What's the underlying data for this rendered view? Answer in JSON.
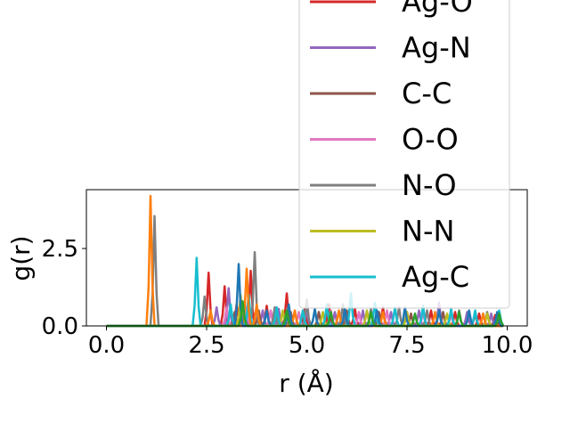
{
  "chart_data": {
    "type": "line",
    "xlabel": "r (Å)",
    "ylabel": "g(r)",
    "xlim": [
      -0.5,
      10.5
    ],
    "ylim": [
      0,
      4.4
    ],
    "xticks": [
      0.0,
      2.5,
      5.0,
      7.5,
      10.0
    ],
    "xtick_labels": [
      "0.0",
      "2.5",
      "5.0",
      "7.5",
      "10.0"
    ],
    "yticks": [
      0.0,
      2.5
    ],
    "ytick_labels": [
      "0.0",
      "2.5"
    ],
    "grid": false,
    "legend_position": "upper-right",
    "series": [
      {
        "name": "Ag-O",
        "color": "#d62728",
        "peaks": [
          [
            2.55,
            1.72
          ],
          [
            2.95,
            1.28
          ],
          [
            3.25,
            0.7
          ],
          [
            3.6,
            1.78
          ],
          [
            4.0,
            0.65
          ],
          [
            4.5,
            1.05
          ],
          [
            4.95,
            0.55
          ],
          [
            5.55,
            0.7
          ],
          [
            6.2,
            0.55
          ],
          [
            6.9,
            0.6
          ],
          [
            7.5,
            0.45
          ],
          [
            8.1,
            0.5
          ],
          [
            8.7,
            0.45
          ],
          [
            9.3,
            0.4
          ],
          [
            9.7,
            0.35
          ]
        ]
      },
      {
        "name": "Ag-N",
        "color": "#9467bd",
        "peaks": [
          [
            2.75,
            0.6
          ],
          [
            3.05,
            1.22
          ],
          [
            3.45,
            0.75
          ],
          [
            3.9,
            0.5
          ],
          [
            4.3,
            0.55
          ],
          [
            5.0,
            0.5
          ],
          [
            5.7,
            0.45
          ],
          [
            6.4,
            0.5
          ],
          [
            7.1,
            0.45
          ],
          [
            7.8,
            0.5
          ],
          [
            8.3,
            0.75
          ],
          [
            9.0,
            0.45
          ],
          [
            9.6,
            0.4
          ]
        ]
      },
      {
        "name": "C-C",
        "color": "#8c564b",
        "peaks": [
          [
            3.2,
            0.45
          ],
          [
            3.8,
            0.5
          ],
          [
            4.6,
            0.45
          ],
          [
            5.3,
            0.45
          ],
          [
            6.0,
            0.5
          ],
          [
            6.8,
            0.45
          ],
          [
            7.6,
            0.4
          ],
          [
            8.4,
            0.45
          ],
          [
            9.2,
            0.4
          ]
        ]
      },
      {
        "name": "O-O",
        "color": "#e377c2",
        "peaks": [
          [
            3.0,
            0.6
          ],
          [
            3.5,
            0.55
          ],
          [
            4.1,
            0.5
          ],
          [
            4.8,
            0.45
          ],
          [
            5.6,
            0.5
          ],
          [
            6.3,
            0.45
          ],
          [
            7.0,
            0.5
          ],
          [
            7.9,
            0.45
          ],
          [
            8.6,
            0.4
          ],
          [
            9.4,
            0.4
          ]
        ]
      },
      {
        "name": "N-O",
        "color": "#7f7f7f",
        "peaks": [
          [
            1.2,
            3.55
          ],
          [
            2.45,
            0.95
          ],
          [
            3.7,
            2.38
          ],
          [
            4.2,
            0.6
          ],
          [
            5.0,
            0.85
          ],
          [
            5.9,
            0.7
          ],
          [
            6.6,
            0.55
          ],
          [
            7.3,
            0.6
          ],
          [
            8.0,
            0.5
          ],
          [
            8.8,
            0.5
          ],
          [
            9.5,
            0.45
          ]
        ]
      },
      {
        "name": "N-N",
        "color": "#bcbd22",
        "peaks": [
          [
            3.35,
            1.0
          ],
          [
            4.4,
            0.5
          ],
          [
            5.4,
            0.45
          ],
          [
            6.5,
            0.5
          ],
          [
            7.5,
            0.45
          ],
          [
            8.5,
            0.4
          ],
          [
            9.5,
            0.4
          ]
        ]
      },
      {
        "name": "Ag-C",
        "color": "#17becf",
        "peaks": [
          [
            2.25,
            2.2
          ],
          [
            3.1,
            0.7
          ],
          [
            3.55,
            1.0
          ],
          [
            4.25,
            0.6
          ],
          [
            4.9,
            0.5
          ],
          [
            5.5,
            0.7
          ],
          [
            6.1,
            1.05
          ],
          [
            6.7,
            0.75
          ],
          [
            7.2,
            0.6
          ],
          [
            7.9,
            0.65
          ],
          [
            8.6,
            0.55
          ],
          [
            9.2,
            0.5
          ],
          [
            9.8,
            0.5
          ]
        ]
      },
      {
        "name": "",
        "color": "#ff7f0e",
        "peaks": [
          [
            1.1,
            4.2
          ],
          [
            2.6,
            0.5
          ],
          [
            3.5,
            1.85
          ],
          [
            3.75,
            0.7
          ],
          [
            4.7,
            0.5
          ],
          [
            5.8,
            0.5
          ],
          [
            6.9,
            0.45
          ],
          [
            8.2,
            0.45
          ],
          [
            9.4,
            0.4
          ]
        ]
      },
      {
        "name": "",
        "color": "#1f77b4",
        "peaks": [
          [
            3.3,
            2.0
          ],
          [
            4.0,
            0.5
          ],
          [
            4.55,
            0.7
          ],
          [
            5.2,
            0.55
          ],
          [
            5.95,
            0.55
          ],
          [
            6.75,
            0.5
          ],
          [
            7.45,
            0.6
          ],
          [
            8.3,
            0.5
          ],
          [
            9.05,
            0.5
          ],
          [
            9.75,
            0.45
          ]
        ]
      },
      {
        "name": "",
        "color": "#2ca02c",
        "peaks": [
          [
            3.4,
            0.8
          ],
          [
            4.5,
            0.5
          ],
          [
            5.6,
            0.45
          ],
          [
            6.6,
            0.45
          ],
          [
            7.7,
            0.4
          ],
          [
            8.8,
            0.45
          ],
          [
            9.8,
            0.4
          ]
        ]
      }
    ]
  }
}
